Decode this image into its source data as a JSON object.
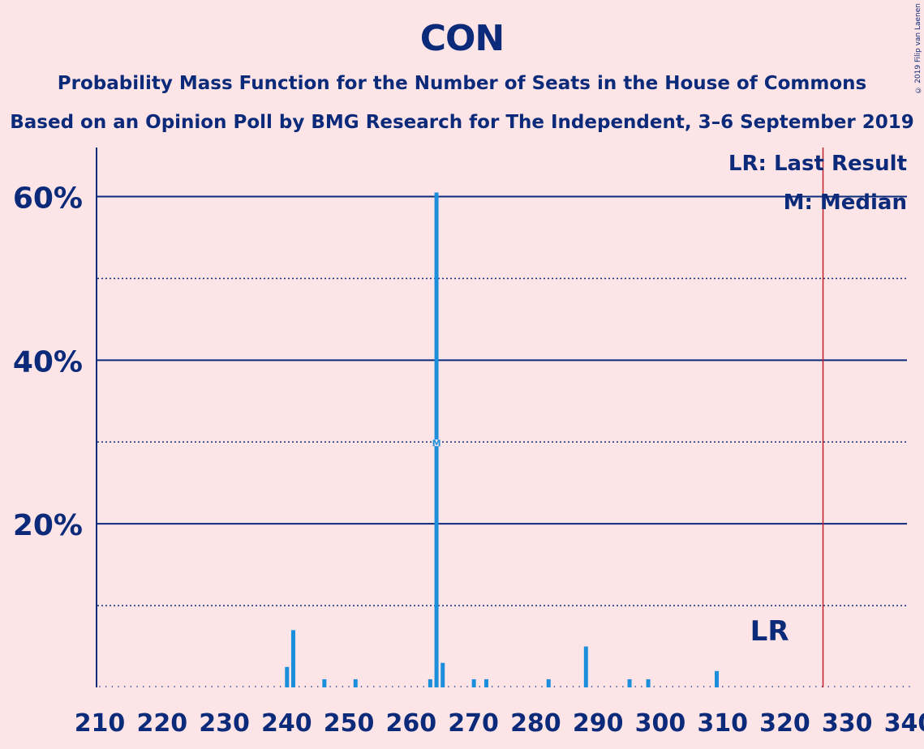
{
  "header": {
    "title": "CON",
    "subtitle": "Probability Mass Function for the Number of Seats in the House of Commons",
    "source": "Based on an Opinion Poll by BMG Research for The Independent, 3–6 September 2019",
    "copyright": "© 2019 Filip van Laenen"
  },
  "legend": {
    "lr": "LR: Last Result",
    "median": "M: Median"
  },
  "colors": {
    "background": "#fde4e6",
    "text": "#0b2a7a",
    "bar": "#1b8fdb",
    "last_result_line": "#c0202a"
  },
  "chart_data": {
    "type": "bar",
    "x_ticks": [
      210,
      220,
      230,
      240,
      250,
      260,
      270,
      280,
      290,
      300,
      310,
      320,
      330,
      340
    ],
    "y_ticks": [
      "20%",
      "40%",
      "60%"
    ],
    "ylim": [
      0,
      66
    ],
    "xlim": [
      210,
      340
    ],
    "grid": "solid at 20/40/60, dotted at 10/30/50",
    "last_result": 326,
    "last_result_label": "LR",
    "median": 264,
    "median_label": "M",
    "seats": [
      240,
      241,
      246,
      251,
      263,
      264,
      265,
      270,
      272,
      282,
      288,
      295,
      298,
      309
    ],
    "probability_pct": [
      2.5,
      7,
      1,
      1,
      1,
      60.5,
      3,
      1,
      1,
      1,
      5,
      1,
      1,
      2
    ]
  }
}
